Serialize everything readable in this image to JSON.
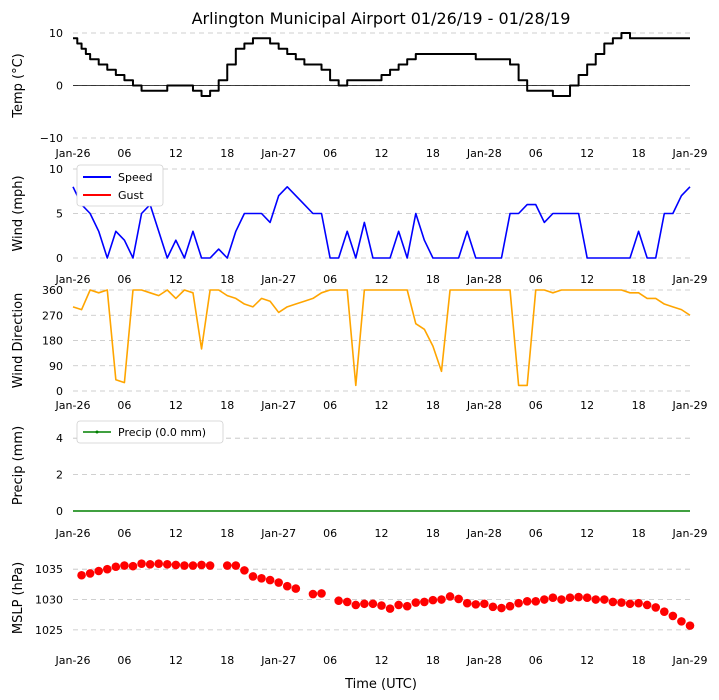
{
  "title": "Arlington Municipal Airport 01/26/19 - 01/28/19",
  "xlabel": "Time (UTC)",
  "x_ticks": [
    "Jan-26",
    "06",
    "12",
    "18",
    "Jan-27",
    "06",
    "12",
    "18",
    "Jan-28",
    "06",
    "12",
    "18",
    "Jan-29"
  ],
  "x_range_hours": [
    0,
    72
  ],
  "colors": {
    "temp": "#000000",
    "speed": "#0000ff",
    "gust": "#ff0000",
    "direction": "#ffa500",
    "precip": "#008000",
    "mslp": "#ff0000",
    "grid": "#c0c0c0"
  },
  "chart_data": [
    {
      "id": "temp",
      "type": "line",
      "ylabel": "Temp (°C)",
      "ylim": [
        -10,
        10
      ],
      "y_ticks": [
        "10",
        "0",
        "−10"
      ],
      "y_tick_values": [
        10,
        0,
        -10
      ],
      "zero_line": true,
      "series": [
        {
          "name": "Temp",
          "x": [
            0,
            0.5,
            1,
            1.5,
            2,
            3,
            4,
            5,
            6,
            7,
            8,
            9,
            10,
            11,
            12,
            13,
            14,
            15,
            16,
            17,
            18,
            19,
            20,
            21,
            22,
            23,
            24,
            25,
            26,
            27,
            28,
            29,
            30,
            31,
            32,
            33,
            34,
            35,
            36,
            37,
            38,
            39,
            40,
            41,
            42,
            43,
            44,
            45,
            46,
            47,
            48,
            49,
            50,
            51,
            52,
            53,
            54,
            55,
            56,
            57,
            58,
            59,
            60,
            61,
            62,
            63,
            64,
            65,
            66,
            67,
            68,
            69,
            70,
            71,
            72
          ],
          "values": [
            9,
            8,
            7,
            6,
            5,
            4,
            3,
            2,
            1,
            0,
            -1,
            -1,
            -1,
            0,
            0,
            0,
            -1,
            -2,
            -1,
            1,
            4,
            7,
            8,
            9,
            9,
            8,
            7,
            6,
            5,
            4,
            4,
            3,
            1,
            0,
            1,
            1,
            1,
            1,
            2,
            3,
            4,
            5,
            6,
            6,
            6,
            6,
            6,
            6,
            6,
            5,
            5,
            5,
            5,
            4,
            1,
            -1,
            -1,
            -1,
            -2,
            -2,
            0,
            2,
            4,
            6,
            8,
            9,
            10,
            9,
            9,
            9,
            9,
            9,
            9,
            9,
            9
          ],
          "color": "#000000"
        }
      ]
    },
    {
      "id": "wind",
      "type": "line",
      "ylabel": "Wind (mph)",
      "ylim": [
        0,
        10
      ],
      "y_ticks": [
        "10",
        "5",
        "0"
      ],
      "y_tick_values": [
        10,
        5,
        0
      ],
      "legend": [
        "Speed",
        "Gust"
      ],
      "series": [
        {
          "name": "Speed",
          "x": [
            0,
            1,
            2,
            3,
            4,
            5,
            6,
            7,
            8,
            9,
            10,
            11,
            12,
            13,
            14,
            15,
            16,
            17,
            18,
            19,
            20,
            21,
            22,
            23,
            24,
            25,
            26,
            27,
            28,
            29,
            30,
            31,
            32,
            33,
            34,
            35,
            36,
            37,
            38,
            39,
            40,
            41,
            42,
            43,
            44,
            45,
            46,
            47,
            48,
            49,
            50,
            51,
            52,
            53,
            54,
            55,
            56,
            57,
            58,
            59,
            60,
            61,
            62,
            63,
            64,
            65,
            66,
            67,
            68,
            69,
            70,
            71,
            72
          ],
          "values": [
            8,
            6,
            5,
            3,
            0,
            3,
            2,
            0,
            5,
            6,
            3,
            0,
            2,
            0,
            3,
            0,
            0,
            1,
            0,
            3,
            5,
            5,
            5,
            4,
            7,
            8,
            7,
            6,
            5,
            5,
            0,
            0,
            3,
            0,
            4,
            0,
            0,
            0,
            3,
            0,
            5,
            2,
            0,
            0,
            0,
            0,
            3,
            0,
            0,
            0,
            0,
            5,
            5,
            6,
            6,
            4,
            5,
            5,
            5,
            5,
            0,
            0,
            0,
            0,
            0,
            0,
            3,
            0,
            0,
            5,
            5,
            7,
            8
          ],
          "color": "#0000ff"
        },
        {
          "name": "Gust",
          "x": [],
          "values": [],
          "color": "#ff0000"
        }
      ]
    },
    {
      "id": "direction",
      "type": "line",
      "ylabel": "Wind Direction",
      "ylim": [
        0,
        360
      ],
      "y_ticks": [
        "360",
        "270",
        "180",
        "90",
        "0"
      ],
      "y_tick_values": [
        360,
        270,
        180,
        90,
        0
      ],
      "series": [
        {
          "name": "Direction",
          "x": [
            0,
            1,
            2,
            3,
            4,
            5,
            6,
            7,
            8,
            9,
            10,
            11,
            12,
            13,
            14,
            15,
            16,
            17,
            18,
            19,
            20,
            21,
            22,
            23,
            24,
            25,
            26,
            27,
            28,
            29,
            30,
            31,
            32,
            33,
            34,
            35,
            36,
            37,
            38,
            39,
            40,
            41,
            42,
            43,
            44,
            45,
            46,
            47,
            48,
            49,
            50,
            51,
            52,
            53,
            54,
            55,
            56,
            57,
            58,
            59,
            60,
            61,
            62,
            63,
            64,
            65,
            66,
            67,
            68,
            69,
            70,
            71,
            72
          ],
          "values": [
            300,
            290,
            360,
            350,
            360,
            40,
            30,
            360,
            360,
            350,
            340,
            360,
            330,
            360,
            350,
            150,
            360,
            360,
            340,
            330,
            310,
            300,
            330,
            320,
            280,
            300,
            310,
            320,
            330,
            350,
            360,
            360,
            360,
            20,
            360,
            360,
            360,
            360,
            360,
            360,
            240,
            220,
            160,
            70,
            360,
            360,
            360,
            360,
            360,
            360,
            360,
            360,
            20,
            20,
            360,
            360,
            350,
            360,
            360,
            360,
            360,
            360,
            360,
            360,
            360,
            350,
            350,
            330,
            330,
            310,
            300,
            290,
            270
          ],
          "color": "#ffa500"
        }
      ]
    },
    {
      "id": "precip",
      "type": "line",
      "ylabel": "Precip (mm)",
      "ylim": [
        0,
        5
      ],
      "y_ticks": [
        "4",
        "2",
        "0"
      ],
      "y_tick_values": [
        4,
        2,
        0
      ],
      "legend": [
        "Precip (0.0 mm)"
      ],
      "series": [
        {
          "name": "Precip (0.0 mm)",
          "x": [
            0,
            72
          ],
          "values": [
            0,
            0
          ],
          "color": "#008000"
        }
      ]
    },
    {
      "id": "mslp",
      "type": "scatter",
      "ylabel": "MSLP (hPa)",
      "ylim": [
        1023,
        1037.5
      ],
      "y_ticks": [
        "1035",
        "1030",
        "1025"
      ],
      "y_tick_values": [
        1035,
        1030,
        1025
      ],
      "series": [
        {
          "name": "MSLP",
          "x": [
            1,
            2,
            3,
            4,
            5,
            6,
            7,
            8,
            9,
            10,
            11,
            12,
            13,
            14,
            15,
            16,
            18,
            19,
            20,
            21,
            22,
            23,
            24,
            25,
            26,
            28,
            29,
            31,
            32,
            33,
            34,
            35,
            36,
            37,
            38,
            39,
            40,
            41,
            42,
            43,
            44,
            45,
            46,
            47,
            48,
            49,
            50,
            51,
            52,
            53,
            54,
            55,
            56,
            57,
            58,
            59,
            60,
            61,
            62,
            63,
            64,
            65,
            66,
            67,
            68,
            69,
            70,
            71,
            72
          ],
          "values": [
            1034,
            1034.3,
            1034.7,
            1035,
            1035.4,
            1035.6,
            1035.5,
            1035.9,
            1035.8,
            1035.9,
            1035.8,
            1035.7,
            1035.6,
            1035.6,
            1035.7,
            1035.6,
            1035.6,
            1035.6,
            1034.8,
            1033.8,
            1033.5,
            1033.2,
            1032.8,
            1032.2,
            1031.8,
            1030.9,
            1031,
            1029.8,
            1029.6,
            1029.1,
            1029.3,
            1029.3,
            1029,
            1028.5,
            1029.1,
            1028.9,
            1029.5,
            1029.6,
            1029.9,
            1030,
            1030.5,
            1030.1,
            1029.4,
            1029.2,
            1029.3,
            1028.8,
            1028.6,
            1028.9,
            1029.4,
            1029.7,
            1029.7,
            1030,
            1030.3,
            1030,
            1030.3,
            1030.4,
            1030.3,
            1030,
            1030,
            1029.6,
            1029.5,
            1029.3,
            1029.4,
            1029.1,
            1028.7,
            1028,
            1027.3,
            1026.4,
            1025.7
          ],
          "color": "#ff0000"
        }
      ]
    }
  ]
}
